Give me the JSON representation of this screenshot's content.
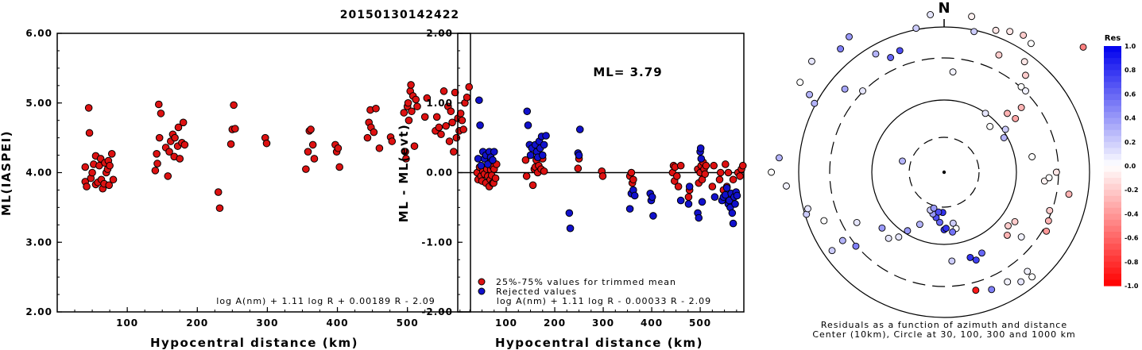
{
  "chart_data": [
    {
      "type": "scatter",
      "title": "20150130142422",
      "xlabel": "Hypocentral distance (km)",
      "ylabel": "ML(IASPEI)",
      "xlim": [
        0,
        590
      ],
      "ylim": [
        2.0,
        6.0
      ],
      "xticks": [
        "100",
        "200",
        "300",
        "400",
        "500"
      ],
      "yticks": [
        "2.00",
        "3.00",
        "4.00",
        "5.00",
        "6.00"
      ],
      "annotation": "log A(nm) + 1.11 log R + 0.00189 R - 2.09",
      "colors": {
        "point": "#dd1111"
      },
      "points": [
        [
          40,
          3.87
        ],
        [
          40,
          4.08
        ],
        [
          42,
          3.8
        ],
        [
          45,
          4.93
        ],
        [
          46,
          4.57
        ],
        [
          48,
          3.92
        ],
        [
          50,
          4.0
        ],
        [
          52,
          4.12
        ],
        [
          55,
          3.83
        ],
        [
          55,
          4.24
        ],
        [
          58,
          3.86
        ],
        [
          60,
          4.1
        ],
        [
          62,
          4.2
        ],
        [
          63,
          3.9
        ],
        [
          65,
          3.77
        ],
        [
          67,
          3.84
        ],
        [
          68,
          4.14
        ],
        [
          70,
          4.0
        ],
        [
          72,
          4.05
        ],
        [
          73,
          4.17
        ],
        [
          74,
          3.82
        ],
        [
          75,
          4.1
        ],
        [
          78,
          4.27
        ],
        [
          80,
          3.9
        ],
        [
          140,
          4.03
        ],
        [
          142,
          4.27
        ],
        [
          143,
          4.13
        ],
        [
          145,
          4.98
        ],
        [
          146,
          4.5
        ],
        [
          148,
          4.85
        ],
        [
          155,
          4.36
        ],
        [
          158,
          3.95
        ],
        [
          160,
          4.3
        ],
        [
          162,
          4.45
        ],
        [
          165,
          4.55
        ],
        [
          167,
          4.23
        ],
        [
          168,
          4.5
        ],
        [
          172,
          4.38
        ],
        [
          173,
          4.65
        ],
        [
          175,
          4.2
        ],
        [
          178,
          4.43
        ],
        [
          180,
          4.72
        ],
        [
          182,
          4.4
        ],
        [
          230,
          3.72
        ],
        [
          232,
          3.49
        ],
        [
          248,
          4.41
        ],
        [
          250,
          4.62
        ],
        [
          252,
          4.97
        ],
        [
          254,
          4.63
        ],
        [
          297,
          4.5
        ],
        [
          299,
          4.42
        ],
        [
          355,
          4.05
        ],
        [
          358,
          4.3
        ],
        [
          360,
          4.6
        ],
        [
          362,
          4.62
        ],
        [
          365,
          4.4
        ],
        [
          367,
          4.2
        ],
        [
          397,
          4.4
        ],
        [
          399,
          4.3
        ],
        [
          401,
          4.35
        ],
        [
          403,
          4.08
        ],
        [
          443,
          4.5
        ],
        [
          445,
          4.72
        ],
        [
          447,
          4.9
        ],
        [
          448,
          4.65
        ],
        [
          452,
          4.58
        ],
        [
          455,
          4.92
        ],
        [
          460,
          4.35
        ],
        [
          476,
          4.51
        ],
        [
          478,
          4.45
        ],
        [
          495,
          4.86
        ],
        [
          497,
          4.3
        ],
        [
          498,
          4.2
        ],
        [
          500,
          4.95
        ],
        [
          501,
          5.0
        ],
        [
          502,
          4.75
        ],
        [
          504,
          5.17
        ],
        [
          505,
          5.26
        ],
        [
          506,
          4.88
        ],
        [
          508,
          5.1
        ],
        [
          510,
          4.38
        ],
        [
          512,
          5.05
        ],
        [
          514,
          4.95
        ],
        [
          525,
          4.8
        ],
        [
          528,
          5.07
        ],
        [
          540,
          4.6
        ],
        [
          542,
          4.8
        ],
        [
          545,
          4.65
        ],
        [
          548,
          4.55
        ],
        [
          552,
          5.17
        ],
        [
          555,
          4.67
        ],
        [
          558,
          4.95
        ],
        [
          560,
          4.45
        ],
        [
          562,
          4.88
        ],
        [
          564,
          4.72
        ],
        [
          566,
          4.3
        ],
        [
          568,
          5.15
        ],
        [
          570,
          4.5
        ],
        [
          572,
          4.78
        ],
        [
          574,
          4.6
        ],
        [
          576,
          4.85
        ],
        [
          578,
          4.75
        ],
        [
          580,
          4.62
        ],
        [
          582,
          5.0
        ],
        [
          585,
          5.08
        ],
        [
          588,
          5.23
        ]
      ]
    },
    {
      "type": "scatter",
      "xlabel": "Hypocentral distance (km)",
      "ylabel": "ML - ML(evt)",
      "xlim": [
        0,
        590
      ],
      "ylim": [
        -2.0,
        2.0
      ],
      "xticks": [
        "100",
        "200",
        "300",
        "400",
        "500"
      ],
      "yticks": [
        "-2.00",
        "-1.00",
        "0.00",
        "1.00",
        "2.00"
      ],
      "ml_label": "ML= 3.79",
      "annotation": "log A(nm) + 1.11 log R - 0.00033 R - 2.09",
      "legend": {
        "position": "bottom-left",
        "trimmed": "25%-75% values for trimmed mean",
        "rejected": "Rejected values"
      },
      "colors": {
        "trimmed": "#dd1111",
        "rejected": "#1111cc"
      },
      "trimmed": [
        [
          40,
          0.0
        ],
        [
          42,
          -0.1
        ],
        [
          45,
          0.08
        ],
        [
          48,
          -0.05
        ],
        [
          50,
          -0.12
        ],
        [
          52,
          0.02
        ],
        [
          55,
          -0.02
        ],
        [
          58,
          -0.15
        ],
        [
          60,
          0.05
        ],
        [
          62,
          -0.05
        ],
        [
          63,
          0.15
        ],
        [
          65,
          -0.2
        ],
        [
          67,
          -0.1
        ],
        [
          68,
          0.04
        ],
        [
          70,
          -0.04
        ],
        [
          72,
          -0.15
        ],
        [
          73,
          0.08
        ],
        [
          74,
          -0.15
        ],
        [
          75,
          0.05
        ],
        [
          78,
          -0.08
        ],
        [
          80,
          0.12
        ],
        [
          140,
          0.18
        ],
        [
          142,
          -0.05
        ],
        [
          155,
          -0.18
        ],
        [
          158,
          0.05
        ],
        [
          160,
          0.08
        ],
        [
          162,
          0.18
        ],
        [
          165,
          0.0
        ],
        [
          167,
          0.1
        ],
        [
          172,
          0.05
        ],
        [
          175,
          0.2
        ],
        [
          178,
          0.02
        ],
        [
          248,
          0.06
        ],
        [
          250,
          0.2
        ],
        [
          297,
          0.02
        ],
        [
          299,
          -0.05
        ],
        [
          355,
          -0.05
        ],
        [
          358,
          0.0
        ],
        [
          360,
          -0.15
        ],
        [
          362,
          -0.1
        ],
        [
          443,
          0.0
        ],
        [
          445,
          0.1
        ],
        [
          447,
          -0.12
        ],
        [
          448,
          0.08
        ],
        [
          452,
          -0.05
        ],
        [
          455,
          -0.2
        ],
        [
          460,
          0.1
        ],
        [
          476,
          -0.35
        ],
        [
          478,
          -0.25
        ],
        [
          495,
          0.05
        ],
        [
          497,
          -0.15
        ],
        [
          500,
          0.0
        ],
        [
          502,
          0.1
        ],
        [
          504,
          -0.1
        ],
        [
          506,
          0.15
        ],
        [
          508,
          0.05
        ],
        [
          510,
          -0.02
        ],
        [
          512,
          0.1
        ],
        [
          525,
          -0.2
        ],
        [
          528,
          0.1
        ],
        [
          540,
          -0.1
        ],
        [
          542,
          0.0
        ],
        [
          548,
          -0.25
        ],
        [
          552,
          0.12
        ],
        [
          555,
          -0.2
        ],
        [
          558,
          0.0
        ],
        [
          568,
          -0.1
        ],
        [
          578,
          0.0
        ],
        [
          582,
          -0.05
        ],
        [
          585,
          0.05
        ],
        [
          588,
          0.1
        ]
      ],
      "rejected": [
        [
          42,
          0.2
        ],
        [
          44,
          1.04
        ],
        [
          46,
          0.68
        ],
        [
          48,
          0.1
        ],
        [
          52,
          0.3
        ],
        [
          55,
          0.2
        ],
        [
          58,
          0.25
        ],
        [
          62,
          0.12
        ],
        [
          65,
          0.3
        ],
        [
          68,
          0.22
        ],
        [
          72,
          0.18
        ],
        [
          75,
          0.3
        ],
        [
          143,
          0.88
        ],
        [
          145,
          0.68
        ],
        [
          148,
          0.4
        ],
        [
          150,
          0.25
        ],
        [
          153,
          0.35
        ],
        [
          160,
          0.4
        ],
        [
          163,
          0.3
        ],
        [
          165,
          0.22
        ],
        [
          168,
          0.45
        ],
        [
          170,
          0.35
        ],
        [
          173,
          0.52
        ],
        [
          175,
          0.25
        ],
        [
          178,
          0.4
        ],
        [
          182,
          0.53
        ],
        [
          230,
          -0.58
        ],
        [
          232,
          -0.8
        ],
        [
          248,
          0.28
        ],
        [
          250,
          0.25
        ],
        [
          252,
          0.62
        ],
        [
          355,
          -0.52
        ],
        [
          358,
          -0.3
        ],
        [
          362,
          -0.25
        ],
        [
          365,
          -0.33
        ],
        [
          397,
          -0.3
        ],
        [
          399,
          -0.4
        ],
        [
          401,
          -0.35
        ],
        [
          403,
          -0.62
        ],
        [
          460,
          -0.4
        ],
        [
          476,
          -0.45
        ],
        [
          478,
          -0.2
        ],
        [
          495,
          -0.58
        ],
        [
          497,
          -0.65
        ],
        [
          500,
          0.3
        ],
        [
          501,
          0.35
        ],
        [
          502,
          0.2
        ],
        [
          504,
          -0.42
        ],
        [
          530,
          -0.35
        ],
        [
          545,
          -0.4
        ],
        [
          548,
          -0.35
        ],
        [
          552,
          -0.32
        ],
        [
          555,
          -0.22
        ],
        [
          558,
          -0.45
        ],
        [
          560,
          -0.4
        ],
        [
          562,
          -0.5
        ],
        [
          564,
          -0.3
        ],
        [
          566,
          -0.58
        ],
        [
          568,
          -0.73
        ],
        [
          570,
          -0.35
        ],
        [
          572,
          -0.45
        ],
        [
          574,
          -0.28
        ],
        [
          576,
          -0.33
        ]
      ]
    },
    {
      "type": "polar-scatter",
      "north_label": "N",
      "caption_line1": "Residuals as a function of azimuth and distance",
      "caption_line2": "Center (10km), Circle at 30, 100, 300 and 1000 km",
      "colorbar": {
        "title": "Res",
        "ticks": [
          "1.0",
          "0.8",
          "0.6",
          "0.4",
          "0.2",
          "0.0",
          "-0.2",
          "-0.4",
          "-0.6",
          "-0.8",
          "-1.0"
        ],
        "positive_color": "#0000ee",
        "negative_color": "#ff0000"
      },
      "points": [
        [
          5,
          70,
          0.05
        ],
        [
          10,
          110,
          -0.05
        ],
        [
          25,
          90,
          -0.2
        ],
        [
          48,
          130,
          -0.5
        ],
        [
          50,
          70,
          -0.3
        ],
        [
          35,
          50,
          0.1
        ],
        [
          45,
          45,
          0.0
        ],
        [
          55,
          52,
          0.2
        ],
        [
          60,
          48,
          0.3
        ],
        [
          80,
          62,
          0.0
        ],
        [
          95,
          70,
          -0.05
        ],
        [
          110,
          78,
          -0.2
        ],
        [
          115,
          80,
          -0.3
        ],
        [
          120,
          82,
          -0.4
        ],
        [
          140,
          90,
          0.05
        ],
        [
          158,
          88,
          0.5
        ],
        [
          165,
          85,
          -0.9
        ],
        [
          175,
          62,
          0.2
        ],
        [
          180,
          40,
          0.8
        ],
        [
          185,
          35,
          0.6
        ],
        [
          190,
          32,
          0.7
        ],
        [
          195,
          30,
          0.4
        ],
        [
          200,
          28,
          0.2
        ],
        [
          205,
          40,
          0.3
        ],
        [
          212,
          48,
          0.4
        ],
        [
          230,
          80,
          0.5
        ],
        [
          235,
          95,
          0.2
        ],
        [
          236,
          85,
          0.3
        ],
        [
          300,
          108,
          0.3
        ],
        [
          310,
          90,
          0.35
        ],
        [
          315,
          80,
          0.1
        ],
        [
          330,
          95,
          0.3
        ],
        [
          340,
          90,
          0.7
        ],
        [
          349,
          102,
          0.2
        ],
        [
          352,
          128,
          0.35
        ],
        [
          4,
          125,
          0.0
        ],
        [
          355,
          110,
          0.1
        ],
        [
          12,
          100,
          0.2
        ],
        [
          20,
          105,
          -0.1
        ],
        [
          25,
          108,
          -0.1
        ],
        [
          30,
          110,
          -0.2
        ],
        [
          34,
          108,
          0.0
        ],
        [
          36,
          95,
          -0.1
        ],
        [
          40,
          88,
          -0.2
        ],
        [
          42,
          80,
          0.0
        ],
        [
          45,
          80,
          0.05
        ],
        [
          47,
          60,
          -0.3
        ],
        [
          53,
          62,
          -0.35
        ],
        [
          90,
          78,
          -0.1
        ],
        [
          93,
          73,
          0.0
        ],
        [
          100,
          88,
          -0.3
        ],
        [
          125,
          60,
          -0.2
        ],
        [
          130,
          58,
          -0.2
        ],
        [
          135,
          62,
          -0.3
        ],
        [
          228,
          58,
          0.4
        ],
        [
          240,
          70,
          0.1
        ],
        [
          248,
          90,
          0.0
        ],
        [
          253,
          100,
          0.2
        ],
        [
          255,
          98,
          0.1
        ],
        [
          265,
          110,
          0.05
        ],
        [
          270,
          120,
          0.0
        ],
        [
          275,
          115,
          0.3
        ],
        [
          285,
          30,
          0.3
        ],
        [
          298,
          102,
          0.3
        ],
        [
          302,
          118,
          0.0
        ],
        [
          310,
          120,
          0.1
        ],
        [
          320,
          112,
          0.5
        ],
        [
          325,
          115,
          0.4
        ],
        [
          335,
          88,
          0.6
        ],
        [
          140,
          95,
          0.0
        ],
        [
          145,
          93,
          0.1
        ],
        [
          150,
          88,
          0.05
        ],
        [
          130,
          70,
          0.05
        ],
        [
          155,
          62,
          0.6
        ],
        [
          160,
          65,
          0.75
        ],
        [
          163,
          62,
          0.8
        ],
        [
          168,
          40,
          0.0
        ],
        [
          170,
          36,
          0.2
        ],
        [
          172,
          42,
          0.55
        ],
        [
          178,
          39,
          0.8
        ],
        [
          182,
          28,
          0.8
        ],
        [
          188,
          28,
          0.7
        ],
        [
          196,
          26,
          0.4
        ],
        [
          215,
          55,
          0.1
        ],
        [
          220,
          60,
          0.1
        ]
      ]
    }
  ]
}
